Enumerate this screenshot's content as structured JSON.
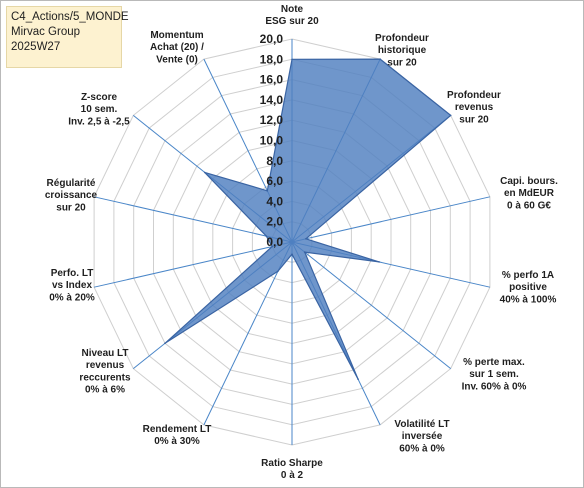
{
  "header": {
    "lines": [
      "C4_Actions/5_MONDE",
      "Mirvac Group",
      "2025W27"
    ]
  },
  "chart_data": {
    "type": "radar",
    "title": "",
    "rmin": 0,
    "rmax": 20,
    "ticks": [
      "0,0",
      "2,0",
      "4,0",
      "6,0",
      "8,0",
      "10,0",
      "12,0",
      "14,0",
      "16,0",
      "18,0",
      "20,0"
    ],
    "grid": true,
    "fill_color": "#4f7fbf",
    "edge_color": "#3a64a3",
    "axes": [
      {
        "label": [
          "Note",
          "ESG sur 20"
        ],
        "value": 18.0
      },
      {
        "label": [
          "Profondeur",
          "historique",
          "sur 20"
        ],
        "value": 20.0
      },
      {
        "label": [
          "Profondeur",
          "revenus",
          "sur 20"
        ],
        "value": 20.0
      },
      {
        "label": [
          "Capi. bours.",
          "en MdEUR",
          "0 à 60 G€"
        ],
        "value": 1.4
      },
      {
        "label": [
          "% perfo 1A",
          "positive",
          "40% à 100%"
        ],
        "value": 8.8
      },
      {
        "label": [
          "% perte max.",
          "sur 1 sem.",
          "Inv. 60% à 0%"
        ],
        "value": 1.6
      },
      {
        "label": [
          "Volatilité LT",
          "inversée",
          "60% à 0%"
        ],
        "value": 15.0
      },
      {
        "label": [
          "Ratio Sharpe",
          "0 à 2"
        ],
        "value": 1.2
      },
      {
        "label": [
          "Rendement LT",
          "0% à 30%"
        ],
        "value": 3.2
      },
      {
        "label": [
          "Niveau LT",
          "revenus",
          "reccurents",
          "0% à 6%"
        ],
        "value": 16.0
      },
      {
        "label": [
          "Perfo. LT",
          "vs Index",
          "0% à 20%"
        ],
        "value": 2.0
      },
      {
        "label": [
          "Régularité",
          "croissance",
          "sur 20"
        ],
        "value": 2.6
      },
      {
        "label": [
          "Z-score",
          "10 sem.",
          "Inv. 2,5 à -2,5"
        ],
        "value": 11.0
      },
      {
        "label": [
          "Momentum",
          "Achat (20) /",
          "Vente (0)"
        ],
        "value": 5.6
      }
    ]
  }
}
